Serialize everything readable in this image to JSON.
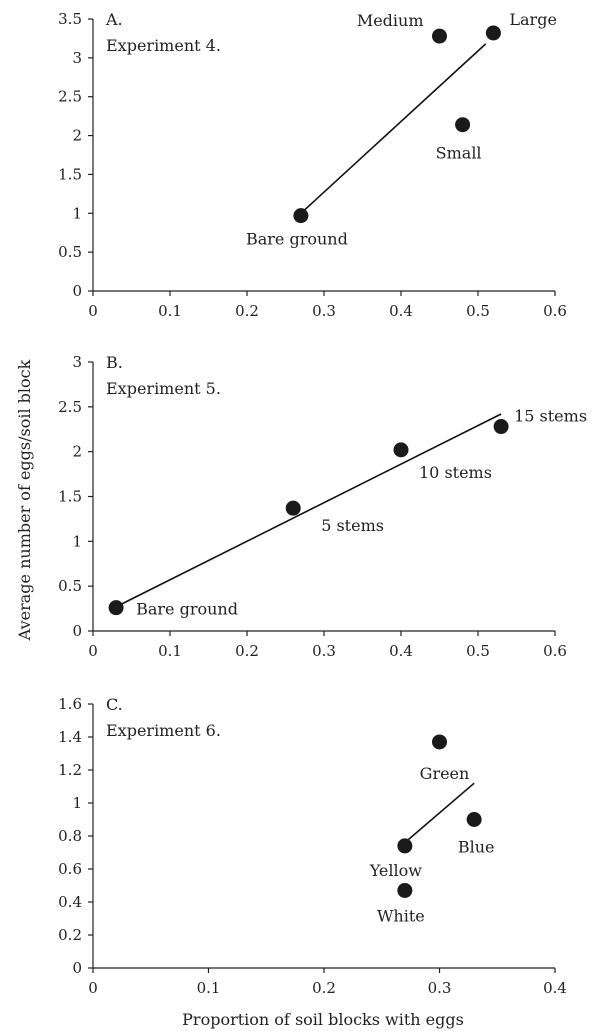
{
  "chart_data": [
    {
      "type": "scatter",
      "panel_label": "A.",
      "experiment": "Experiment 4.",
      "xlim": [
        0,
        0.6
      ],
      "ylim": [
        0,
        3.5
      ],
      "x_ticks": [
        "0",
        "0.1",
        "0.2",
        "0.3",
        "0.4",
        "0.5",
        "0.6"
      ],
      "y_ticks": [
        "0",
        "0.5",
        "1",
        "1.5",
        "2",
        "2.5",
        "3",
        "3.5"
      ],
      "points": [
        {
          "label": "Medium",
          "x": 0.45,
          "y": 3.28
        },
        {
          "label": "Large",
          "x": 0.52,
          "y": 3.32
        },
        {
          "label": "Small",
          "x": 0.48,
          "y": 2.14
        },
        {
          "label": "Bare ground",
          "x": 0.27,
          "y": 0.97
        }
      ],
      "trendline": {
        "x": [
          0.27,
          0.51
        ],
        "y": [
          1.0,
          3.18
        ]
      }
    },
    {
      "type": "scatter",
      "panel_label": "B.",
      "experiment": "Experiment 5.",
      "xlim": [
        0,
        0.6
      ],
      "ylim": [
        0,
        3
      ],
      "x_ticks": [
        "0",
        "0.1",
        "0.2",
        "0.3",
        "0.4",
        "0.5",
        "0.6"
      ],
      "y_ticks": [
        "0",
        "0.5",
        "1",
        "1.5",
        "2",
        "2.5",
        "3"
      ],
      "points": [
        {
          "label": "15 stems",
          "x": 0.53,
          "y": 2.28
        },
        {
          "label": "10 stems",
          "x": 0.4,
          "y": 2.02
        },
        {
          "label": "5 stems",
          "x": 0.26,
          "y": 1.37
        },
        {
          "label": "Bare ground",
          "x": 0.03,
          "y": 0.26
        }
      ],
      "trendline": {
        "x": [
          0.03,
          0.53
        ],
        "y": [
          0.27,
          2.42
        ]
      }
    },
    {
      "type": "scatter",
      "panel_label": "C.",
      "experiment": "Experiment 6.",
      "xlim": [
        0,
        0.4
      ],
      "ylim": [
        0,
        1.6
      ],
      "x_ticks": [
        "0",
        "0.1",
        "0.2",
        "0.3",
        "0.4"
      ],
      "y_ticks": [
        "0",
        "0.2",
        "0.4",
        "0.6",
        "0.8",
        "1",
        "1.2",
        "1.4",
        "1.6"
      ],
      "points": [
        {
          "label": "Green",
          "x": 0.3,
          "y": 1.37
        },
        {
          "label": "Blue",
          "x": 0.33,
          "y": 0.9
        },
        {
          "label": "Yellow",
          "x": 0.27,
          "y": 0.74
        },
        {
          "label": "White",
          "x": 0.27,
          "y": 0.47
        }
      ],
      "trendline": {
        "x": [
          0.27,
          0.33
        ],
        "y": [
          0.76,
          1.12
        ]
      }
    }
  ],
  "ylabel": "Average number of eggs/soil block",
  "xlabel": "Proportion of soil blocks with eggs"
}
